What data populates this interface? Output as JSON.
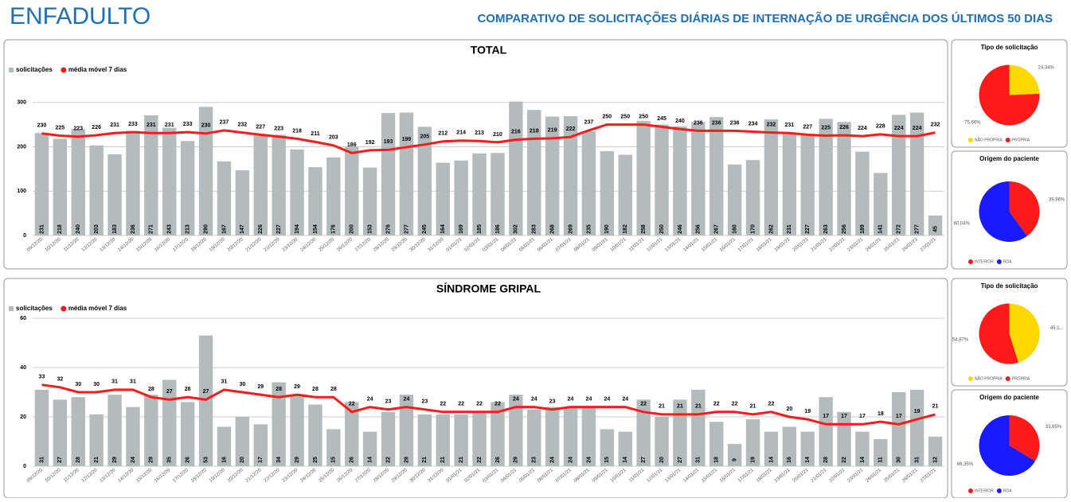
{
  "header": {
    "title": "ENFADULTO",
    "subtitle": "COMPARATIVO DE SOLICITAÇÕES DIÁRIAS DE INTERNAÇÃO DE URGÊNCIA DOS ÚLTIMOS 50 DIAS"
  },
  "chart_data": [
    {
      "type": "combo",
      "title": "TOTAL",
      "ylim": [
        0,
        330
      ],
      "yticks": [
        0,
        100,
        200,
        300
      ],
      "grid": true,
      "legend": "top-left",
      "categories": [
        "09/12/20",
        "10/12/20",
        "11/12/20",
        "12/12/20",
        "13/12/20",
        "14/12/20",
        "15/12/20",
        "16/12/20",
        "17/12/20",
        "18/12/20",
        "19/12/20",
        "20/12/20",
        "21/12/20",
        "22/12/20",
        "23/12/20",
        "24/12/20",
        "25/12/20",
        "26/12/20",
        "27/12/20",
        "28/12/20",
        "29/12/20",
        "30/12/20",
        "31/12/20",
        "01/01/21",
        "02/01/21",
        "03/01/21",
        "04/01/21",
        "05/01/21",
        "06/01/21",
        "07/01/21",
        "08/01/21",
        "09/01/21",
        "10/01/21",
        "11/01/21",
        "12/01/21",
        "13/01/21",
        "14/01/21",
        "15/01/21",
        "16/01/21",
        "17/01/21",
        "18/01/21",
        "19/01/21",
        "20/01/21",
        "21/01/21",
        "22/01/21",
        "23/01/21",
        "24/01/21",
        "25/01/21",
        "26/01/21",
        "27/01/21"
      ],
      "series": [
        {
          "name": "solicitações",
          "type": "bar",
          "color": "#b4bbbd",
          "values": [
            231,
            218,
            240,
            203,
            183,
            236,
            271,
            243,
            213,
            290,
            167,
            147,
            226,
            227,
            194,
            154,
            176,
            200,
            153,
            276,
            277,
            245,
            164,
            169,
            185,
            186,
            302,
            283,
            268,
            269,
            235,
            190,
            182,
            258,
            250,
            246,
            256,
            267,
            160,
            170,
            262,
            231,
            227,
            263,
            256,
            189,
            141,
            272,
            277,
            45
          ]
        },
        {
          "name": "média móvel 7 dias",
          "type": "line",
          "color": "#ff1a1a",
          "values": [
            230,
            225,
            223,
            226,
            231,
            233,
            231,
            231,
            233,
            230,
            237,
            232,
            227,
            223,
            218,
            211,
            203,
            186,
            192,
            193,
            199,
            205,
            212,
            214,
            213,
            210,
            216,
            218,
            219,
            222,
            237,
            250,
            250,
            250,
            245,
            240,
            236,
            236,
            236,
            234,
            232,
            231,
            227,
            225,
            226,
            224,
            228,
            224,
            224,
            232
          ]
        }
      ]
    },
    {
      "type": "pie",
      "title": "Tipo de solicitação",
      "categories": [
        "NÃO PRÓPRIA",
        "PRÓPRIA"
      ],
      "colors": [
        "#ffd700",
        "#ff1a1a"
      ],
      "values": [
        24.34,
        75.66
      ],
      "value_labels": [
        "24,34%",
        "75,66%"
      ]
    },
    {
      "type": "pie",
      "title": "Origem do paciente",
      "categories": [
        "INTERIOR",
        "RDA"
      ],
      "colors": [
        "#ff1a1a",
        "#1a1aff"
      ],
      "values": [
        39.96,
        60.04
      ],
      "value_labels": [
        "39,96%",
        "60,04%"
      ]
    },
    {
      "type": "combo",
      "title": "SÍNDROME GRIPAL",
      "ylim": [
        0,
        60
      ],
      "yticks": [
        0,
        20,
        40,
        60
      ],
      "grid": true,
      "legend": "top-left",
      "categories": [
        "09/12/20",
        "10/12/20",
        "11/12/20",
        "12/12/20",
        "13/12/20",
        "14/12/20",
        "15/12/20",
        "16/12/20",
        "17/12/20",
        "18/12/20",
        "19/12/20",
        "20/12/20",
        "21/12/20",
        "22/12/20",
        "23/12/20",
        "24/12/20",
        "25/12/20",
        "26/12/20",
        "27/12/20",
        "28/12/20",
        "29/12/20",
        "30/12/20",
        "31/12/20",
        "01/01/21",
        "02/01/21",
        "03/01/21",
        "04/01/21",
        "05/01/21",
        "06/01/21",
        "07/01/21",
        "08/01/21",
        "09/01/21",
        "10/01/21",
        "11/01/21",
        "12/01/21",
        "13/01/21",
        "14/01/21",
        "15/01/21",
        "16/01/21",
        "17/01/21",
        "18/01/21",
        "19/01/21",
        "20/01/21",
        "21/01/21",
        "22/01/21",
        "23/01/21",
        "24/01/21",
        "25/01/21",
        "26/01/21",
        "27/01/21"
      ],
      "series": [
        {
          "name": "solicitações",
          "type": "bar",
          "color": "#b4bbbd",
          "values": [
            31,
            27,
            28,
            21,
            29,
            24,
            29,
            35,
            26,
            53,
            16,
            20,
            17,
            34,
            29,
            25,
            15,
            26,
            14,
            22,
            29,
            21,
            21,
            21,
            22,
            26,
            29,
            23,
            24,
            24,
            24,
            15,
            14,
            27,
            20,
            27,
            31,
            18,
            9,
            19,
            14,
            16,
            14,
            28,
            22,
            14,
            11,
            30,
            31,
            12
          ]
        },
        {
          "name": "média móvel 7 dias",
          "type": "line",
          "color": "#ff1a1a",
          "values": [
            33,
            32,
            30,
            30,
            31,
            31,
            28,
            27,
            28,
            27,
            31,
            30,
            29,
            28,
            29,
            28,
            28,
            22,
            24,
            23,
            24,
            23,
            22,
            22,
            22,
            22,
            24,
            24,
            23,
            24,
            24,
            24,
            24,
            22,
            21,
            21,
            21,
            22,
            22,
            21,
            22,
            20,
            19,
            17,
            17,
            17,
            18,
            17,
            19,
            21
          ]
        }
      ]
    },
    {
      "type": "pie",
      "title": "Tipo de solicitação",
      "categories": [
        "NÃO PRÓPRIA",
        "PRÓPRIA"
      ],
      "colors": [
        "#ffd700",
        "#ff1a1a"
      ],
      "values": [
        45.13,
        54.87
      ],
      "value_labels": [
        "45,1...",
        "54,87%"
      ]
    },
    {
      "type": "pie",
      "title": "Origem do paciente",
      "categories": [
        "INTERIOR",
        "RDA"
      ],
      "colors": [
        "#ff1a1a",
        "#1a1aff"
      ],
      "values": [
        33.65,
        66.35
      ],
      "value_labels": [
        "33,65%",
        "66,35%"
      ]
    }
  ]
}
